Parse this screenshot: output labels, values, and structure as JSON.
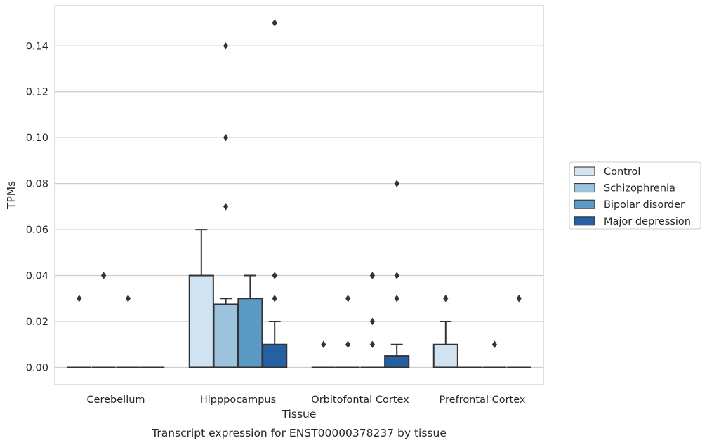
{
  "chart_data": {
    "type": "box",
    "xlabel": "Tissue",
    "ylabel": "TPMs",
    "caption": "Transcript expression for ENST00000378237 by tissue",
    "ylim": [
      -0.0075,
      0.1575
    ],
    "yticks": [
      0.0,
      0.02,
      0.04,
      0.06,
      0.08,
      0.1,
      0.12,
      0.14
    ],
    "ytick_labels": [
      "0.00",
      "0.02",
      "0.04",
      "0.06",
      "0.08",
      "0.10",
      "0.12",
      "0.14"
    ],
    "grid": "horizontal",
    "legend_position": "right",
    "categories": [
      "Cerebellum",
      "Hipppocampus",
      "Orbitofontal Cortex",
      "Prefrontal Cortex"
    ],
    "series": [
      {
        "name": "Control",
        "color": "#d1e2f0",
        "boxes": [
          {
            "q1": 0,
            "median": 0,
            "q3": 0,
            "whislo": 0,
            "whishi": 0,
            "fliers": [
              0.03
            ]
          },
          {
            "q1": 0,
            "median": 0,
            "q3": 0.04,
            "whislo": 0,
            "whishi": 0.06,
            "fliers": []
          },
          {
            "q1": 0,
            "median": 0,
            "q3": 0,
            "whislo": 0,
            "whishi": 0,
            "fliers": [
              0.01
            ]
          },
          {
            "q1": 0,
            "median": 0,
            "q3": 0.01,
            "whislo": 0,
            "whishi": 0.02,
            "fliers": [
              0.03
            ]
          }
        ]
      },
      {
        "name": "Schizophrenia",
        "color": "#9cc4de",
        "boxes": [
          {
            "q1": 0,
            "median": 0,
            "q3": 0,
            "whislo": 0,
            "whishi": 0,
            "fliers": [
              0.04
            ]
          },
          {
            "q1": 0,
            "median": 0,
            "q3": 0.0275,
            "whislo": 0,
            "whishi": 0.03,
            "fliers": [
              0.07,
              0.1,
              0.14
            ]
          },
          {
            "q1": 0,
            "median": 0,
            "q3": 0,
            "whislo": 0,
            "whishi": 0,
            "fliers": [
              0.01,
              0.03
            ]
          },
          {
            "q1": 0,
            "median": 0,
            "q3": 0,
            "whislo": 0,
            "whishi": 0,
            "fliers": []
          }
        ]
      },
      {
        "name": "Bipolar disorder",
        "color": "#5a9ac5",
        "boxes": [
          {
            "q1": 0,
            "median": 0,
            "q3": 0,
            "whislo": 0,
            "whishi": 0,
            "fliers": [
              0.03
            ]
          },
          {
            "q1": 0,
            "median": 0,
            "q3": 0.03,
            "whislo": 0,
            "whishi": 0.04,
            "fliers": []
          },
          {
            "q1": 0,
            "median": 0,
            "q3": 0,
            "whislo": 0,
            "whishi": 0,
            "fliers": [
              0.01,
              0.02,
              0.04
            ]
          },
          {
            "q1": 0,
            "median": 0,
            "q3": 0,
            "whislo": 0,
            "whishi": 0,
            "fliers": [
              0.01
            ]
          }
        ]
      },
      {
        "name": "Major depression",
        "color": "#2561a2",
        "boxes": [
          {
            "q1": 0,
            "median": 0,
            "q3": 0,
            "whislo": 0,
            "whishi": 0,
            "fliers": []
          },
          {
            "q1": 0,
            "median": 0,
            "q3": 0.01,
            "whislo": 0,
            "whishi": 0.02,
            "fliers": [
              0.03,
              0.04,
              0.15
            ]
          },
          {
            "q1": 0,
            "median": 0,
            "q3": 0.005,
            "whislo": 0,
            "whishi": 0.01,
            "fliers": [
              0.03,
              0.04,
              0.08
            ]
          },
          {
            "q1": 0,
            "median": 0,
            "q3": 0,
            "whislo": 0,
            "whishi": 0,
            "fliers": [
              0.03
            ]
          }
        ]
      }
    ]
  },
  "colors": {
    "grid": "#cccccc",
    "frame": "#cccccc",
    "box_edge": "#333333",
    "text": "#262626"
  }
}
